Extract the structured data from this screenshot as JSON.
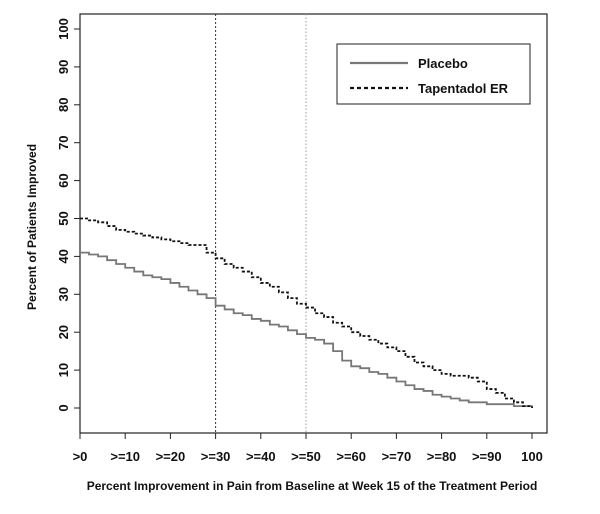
{
  "chart_data": {
    "type": "line",
    "title": "",
    "xlabel": "Percent Improvement in Pain from Baseline at Week 15 of the Treatment Period",
    "ylabel": "Percent of Patients Improved",
    "xlim": [
      0,
      100
    ],
    "ylim": [
      0,
      100
    ],
    "x_ticks": [
      0,
      10,
      20,
      30,
      40,
      50,
      60,
      70,
      80,
      90,
      100
    ],
    "x_tick_labels": [
      ">0",
      ">=10",
      ">=20",
      ">=30",
      ">=40",
      ">=50",
      ">=60",
      ">=70",
      ">=80",
      ">=90",
      "100"
    ],
    "y_ticks": [
      0,
      10,
      20,
      30,
      40,
      50,
      60,
      70,
      80,
      90,
      100
    ],
    "y_tick_labels": [
      "0",
      "10",
      "20",
      "30",
      "40",
      "50",
      "60",
      "70",
      "80",
      "90",
      "100"
    ],
    "reference_lines_x": [
      30,
      50
    ],
    "legend_position": "top-right",
    "series": [
      {
        "name": "Placebo",
        "style": "solid",
        "color": "#777777",
        "x": [
          0,
          2,
          4,
          6,
          8,
          10,
          12,
          14,
          16,
          18,
          20,
          22,
          24,
          26,
          28,
          30,
          32,
          34,
          36,
          38,
          40,
          42,
          44,
          46,
          48,
          50,
          52,
          54,
          56,
          58,
          60,
          62,
          64,
          66,
          68,
          70,
          72,
          74,
          76,
          78,
          80,
          82,
          84,
          86,
          88,
          90,
          92,
          94,
          96,
          98,
          100
        ],
        "values": [
          41,
          40.5,
          40,
          39,
          38,
          37,
          36,
          35,
          34.5,
          34,
          33,
          32,
          31,
          30,
          29,
          27,
          26,
          25,
          24.5,
          23.5,
          23,
          22,
          21.5,
          20.5,
          19.5,
          18.5,
          18,
          17,
          15,
          12.5,
          11,
          10.5,
          9.5,
          9,
          8,
          7,
          6,
          5,
          4.5,
          3.5,
          3,
          2.5,
          2,
          1.5,
          1.5,
          1,
          1,
          1,
          0.5,
          0.5,
          0
        ]
      },
      {
        "name": "Tapentadol ER",
        "style": "dashed",
        "color": "#111111",
        "x": [
          0,
          2,
          4,
          6,
          8,
          10,
          12,
          14,
          16,
          18,
          20,
          22,
          24,
          26,
          28,
          30,
          32,
          34,
          36,
          38,
          40,
          42,
          44,
          46,
          48,
          50,
          52,
          54,
          56,
          58,
          60,
          62,
          64,
          66,
          68,
          70,
          72,
          74,
          76,
          78,
          80,
          82,
          84,
          86,
          88,
          90,
          92,
          94,
          96,
          98,
          100
        ],
        "values": [
          50,
          49.5,
          49,
          48,
          47,
          46.5,
          46,
          45.5,
          45,
          44.5,
          44,
          43.5,
          43,
          43,
          41,
          39.5,
          38,
          37,
          36,
          34.5,
          33,
          32,
          30.5,
          29,
          27.5,
          26.5,
          25,
          24,
          22.5,
          21.5,
          20,
          19,
          18,
          17,
          16,
          15,
          13.5,
          12,
          11,
          10,
          9,
          8.5,
          8.5,
          8,
          7,
          5,
          4,
          2.5,
          1.5,
          0.5,
          0
        ]
      }
    ]
  }
}
